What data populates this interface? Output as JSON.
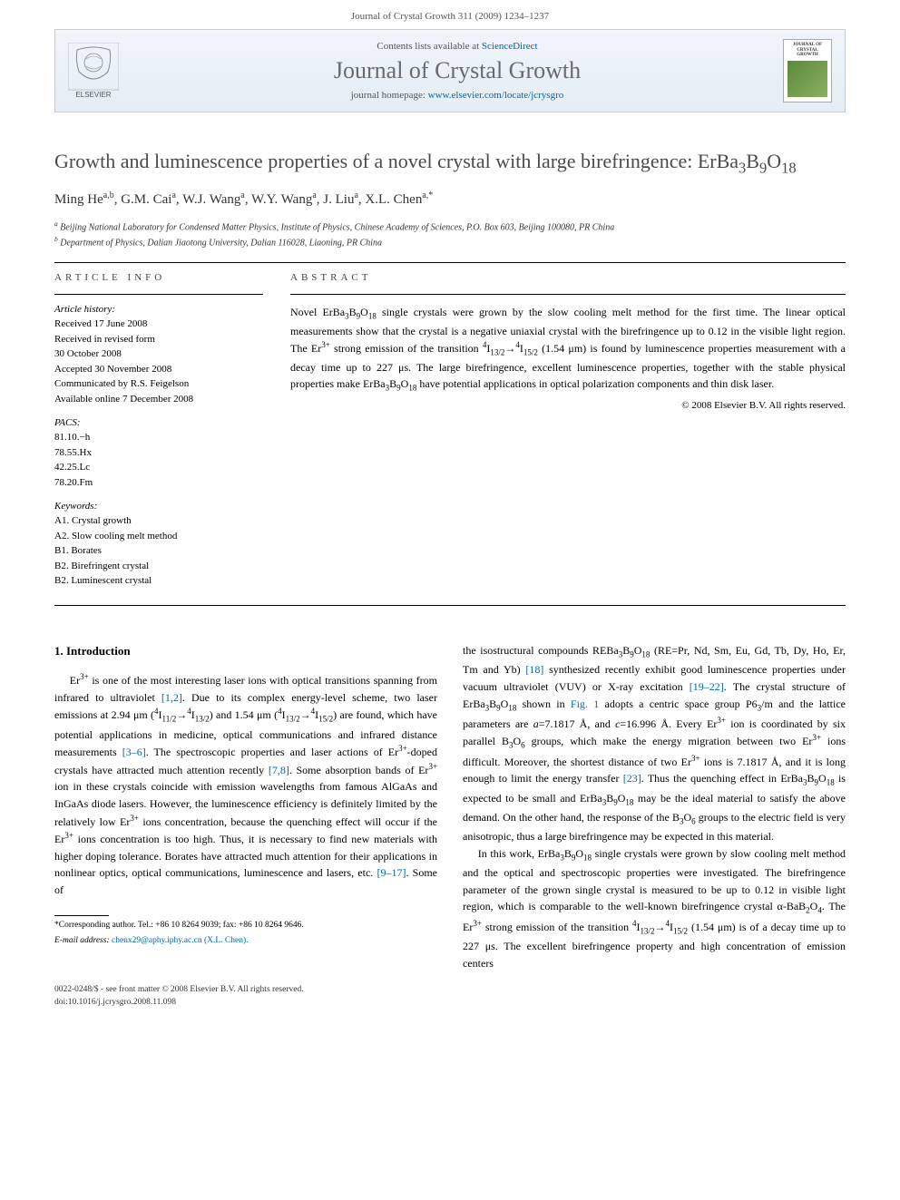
{
  "running_header": "Journal of Crystal Growth 311 (2009) 1234–1237",
  "banner": {
    "contents_prefix": "Contents lists available at ",
    "contents_link": "ScienceDirect",
    "journal_name": "Journal of Crystal Growth",
    "homepage_prefix": "journal homepage: ",
    "homepage_link": "www.elsevier.com/locate/jcrysgro",
    "cover_title": "JOURNAL OF CRYSTAL GROWTH",
    "elsevier_label": "ELSEVIER"
  },
  "article": {
    "title_html": "Growth and luminescence properties of a novel crystal with large birefringence: ErBa<sub>3</sub>B<sub>9</sub>O<sub>18</sub>",
    "authors_html": "Ming He<sup>a,b</sup>, G.M. Cai<sup>a</sup>, W.J. Wang<sup>a</sup>, W.Y. Wang<sup>a</sup>, J. Liu<sup>a</sup>, X.L. Chen<sup>a,*</sup>",
    "affiliations": [
      "Beijing National Laboratory for Condensed Matter Physics, Institute of Physics, Chinese Academy of Sciences, P.O. Box 603, Beijing 100080, PR China",
      "Department of Physics, Dalian Jiaotong University, Dalian 116028, Liaoning, PR China"
    ],
    "aff_markers": [
      "a",
      "b"
    ]
  },
  "info": {
    "left_heading": "ARTICLE INFO",
    "right_heading": "ABSTRACT",
    "history_heading": "Article history:",
    "history": [
      "Received 17 June 2008",
      "Received in revised form",
      "30 October 2008",
      "Accepted 30 November 2008",
      "Communicated by R.S. Feigelson",
      "Available online 7 December 2008"
    ],
    "pacs_heading": "PACS:",
    "pacs": [
      "81.10.−h",
      "78.55.Hx",
      "42.25.Lc",
      "78.20.Fm"
    ],
    "kw_heading": "Keywords:",
    "keywords": [
      "A1. Crystal growth",
      "A2. Slow cooling melt method",
      "B1. Borates",
      "B2. Birefringent crystal",
      "B2. Luminescent crystal"
    ],
    "abstract_html": "Novel ErBa<sub>3</sub>B<sub>9</sub>O<sub>18</sub> single crystals were grown by the slow cooling melt method for the first time. The linear optical measurements show that the crystal is a negative uniaxial crystal with the birefringence up to 0.12 in the visible light region. The Er<sup>3+</sup> strong emission of the transition <sup>4</sup>I<sub>13/2</sub>→<sup>4</sup>I<sub>15/2</sub> (1.54 μm) is found by luminescence properties measurement with a decay time up to 227 μs. The large birefringence, excellent luminescence properties, together with the stable physical properties make ErBa<sub>3</sub>B<sub>9</sub>O<sub>18</sub> have potential applications in optical polarization components and thin disk laser.",
    "copyright": "© 2008 Elsevier B.V. All rights reserved."
  },
  "body": {
    "section_heading": "1. Introduction",
    "col1_p1_html": "Er<sup>3+</sup> is one of the most interesting laser ions with optical transitions spanning from infrared to ultraviolet <a class=\"ref-link\" href=\"#\">[1,2]</a>. Due to its complex energy-level scheme, two laser emissions at 2.94 μm (<sup>4</sup>I<sub>11/2</sub>→<sup>4</sup>I<sub>13/2</sub>) and 1.54 μm (<sup>4</sup>I<sub>13/2</sub>→<sup>4</sup>I<sub>15/2</sub>) are found, which have potential applications in medicine, optical communications and infrared distance measurements <a class=\"ref-link\" href=\"#\">[3–6]</a>. The spectroscopic properties and laser actions of Er<sup>3+</sup>-doped crystals have attracted much attention recently <a class=\"ref-link\" href=\"#\">[7,8]</a>. Some absorption bands of Er<sup>3+</sup> ion in these crystals coincide with emission wavelengths from famous AlGaAs and InGaAs diode lasers. However, the luminescence efficiency is definitely limited by the relatively low Er<sup>3+</sup> ions concentration, because the quenching effect will occur if the Er<sup>3+</sup> ions concentration is too high. Thus, it is necessary to find new materials with higher doping tolerance. Borates have attracted much attention for their applications in nonlinear optics, optical communications, luminescence and lasers, etc. <a class=\"ref-link\" href=\"#\">[9–17]</a>. Some of",
    "col2_p1_html": "the isostructural compounds REBa<sub>3</sub>B<sub>9</sub>O<sub>18</sub> (RE=Pr, Nd, Sm, Eu, Gd, Tb, Dy, Ho, Er, Tm and Yb) <a class=\"ref-link\" href=\"#\">[18]</a> synthesized recently exhibit good luminescence properties under vacuum ultraviolet (VUV) or X-ray excitation <a class=\"ref-link\" href=\"#\">[19–22]</a>. The crystal structure of ErBa<sub>3</sub>B<sub>9</sub>O<sub>18</sub> shown in <a class=\"ref-link\" href=\"#\">Fig. 1</a> adopts a centric space group P6<sub>3</sub>/m and the lattice parameters are <i>a</i>=7.1817 Å, and <i>c</i>=16.996 Å. Every Er<sup>3+</sup> ion is coordinated by six parallel B<sub>3</sub>O<sub>6</sub> groups, which make the energy migration between two Er<sup>3+</sup> ions difficult. Moreover, the shortest distance of two Er<sup>3+</sup> ions is 7.1817 Å, and it is long enough to limit the energy transfer <a class=\"ref-link\" href=\"#\">[23]</a>. Thus the quenching effect in ErBa<sub>3</sub>B<sub>9</sub>O<sub>18</sub> is expected to be small and ErBa<sub>3</sub>B<sub>9</sub>O<sub>18</sub> may be the ideal material to satisfy the above demand. On the other hand, the response of the B<sub>3</sub>O<sub>6</sub> groups to the electric field is very anisotropic, thus a large birefringence may be expected in this material.",
    "col2_p2_html": "In this work, ErBa<sub>3</sub>B<sub>9</sub>O<sub>18</sub> single crystals were grown by slow cooling melt method and the optical and spectroscopic properties were investigated. The birefringence parameter of the grown single crystal is measured to be up to 0.12 in visible light region, which is comparable to the well-known birefringence crystal α-BaB<sub>2</sub>O<sub>4</sub>. The Er<sup>3+</sup> strong emission of the transition <sup>4</sup>I<sub>13/2</sub>→<sup>4</sup>I<sub>15/2</sub> (1.54 μm) is of a decay time up to 227 μs. The excellent birefringence property and high concentration of emission centers"
  },
  "footnote": {
    "corr": "*Corresponding author. Tel.: +86 10 8264 9039; fax: +86 10 8264 9646.",
    "email_label": "E-mail address:",
    "email": "chenx29@aphy.iphy.ac.cn (X.L. Chen)."
  },
  "footer": {
    "line1": "0022-0248/$ - see front matter © 2008 Elsevier B.V. All rights reserved.",
    "line2": "doi:10.1016/j.jcrysgro.2008.11.098"
  },
  "colors": {
    "link": "#0066aa",
    "banner_bg_top": "#f0f5fa",
    "banner_bg_bottom": "#e4edf5",
    "banner_border": "#cccccc",
    "text": "#000000",
    "muted": "#555555",
    "title_gray": "#4a4a4a",
    "elsevier_orange": "#ee7f1a"
  }
}
